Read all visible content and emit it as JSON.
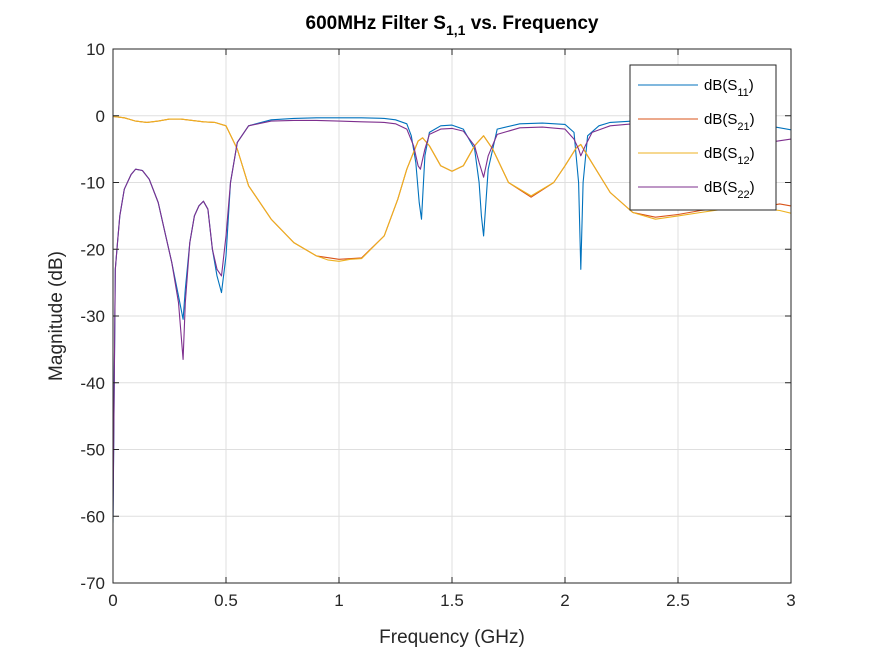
{
  "chart_data": {
    "type": "line",
    "title_main": "600MHz Filter S",
    "title_sub": "1,1",
    "title_tail": " vs. Frequency",
    "xlabel": "Frequency (GHz)",
    "ylabel": "Magnitude (dB)",
    "xlim": [
      0,
      3
    ],
    "ylim": [
      -70,
      10
    ],
    "xticks": [
      0,
      0.5,
      1,
      1.5,
      2,
      2.5,
      3
    ],
    "xtick_labels": [
      "0",
      "0.5",
      "1",
      "1.5",
      "2",
      "2.5",
      "3"
    ],
    "yticks": [
      10,
      0,
      -10,
      -20,
      -30,
      -40,
      -50,
      -60,
      -70
    ],
    "ytick_labels": [
      "10",
      "0",
      "-10",
      "-20",
      "-30",
      "-40",
      "-50",
      "-60",
      "-70"
    ],
    "grid": true,
    "legend_position": "top-right",
    "series": [
      {
        "name_prefix": "dB(S",
        "name_sub": "11",
        "name_suffix": ")",
        "color": "#0072BD",
        "x": [
          0.0,
          0.01,
          0.02,
          0.03,
          0.05,
          0.08,
          0.1,
          0.13,
          0.16,
          0.2,
          0.23,
          0.26,
          0.29,
          0.31,
          0.32,
          0.34,
          0.36,
          0.38,
          0.4,
          0.42,
          0.44,
          0.46,
          0.48,
          0.5,
          0.52,
          0.55,
          0.6,
          0.7,
          0.8,
          0.9,
          1.0,
          1.1,
          1.2,
          1.25,
          1.3,
          1.32,
          1.34,
          1.355,
          1.365,
          1.38,
          1.4,
          1.45,
          1.5,
          1.55,
          1.6,
          1.62,
          1.63,
          1.64,
          1.66,
          1.7,
          1.8,
          1.9,
          2.0,
          2.04,
          2.06,
          2.07,
          2.08,
          2.1,
          2.15,
          2.2,
          2.3,
          2.4,
          2.5,
          2.6,
          2.7,
          2.8,
          2.9,
          3.0
        ],
        "y": [
          -61,
          -23,
          -19,
          -15,
          -11,
          -8.8,
          -8.0,
          -8.2,
          -9.5,
          -13,
          -17.5,
          -22,
          -27,
          -30.5,
          -26,
          -19,
          -15,
          -13.5,
          -12.8,
          -14,
          -20,
          -24,
          -26.5,
          -21,
          -10,
          -4,
          -1.5,
          -0.6,
          -0.4,
          -0.3,
          -0.3,
          -0.3,
          -0.4,
          -0.6,
          -1.2,
          -3,
          -7,
          -13,
          -15.5,
          -6,
          -2.5,
          -1.5,
          -1.4,
          -2,
          -5,
          -10,
          -15,
          -18,
          -8,
          -2,
          -1.2,
          -1.1,
          -1.3,
          -2.5,
          -10,
          -23,
          -10,
          -3,
          -1.5,
          -1.0,
          -0.8,
          -0.6,
          -0.5,
          -0.6,
          -0.8,
          -1.0,
          -1.5,
          -2.1
        ]
      },
      {
        "name_prefix": "dB(S",
        "name_sub": "21",
        "name_suffix": ")",
        "color": "#D95319",
        "x": [
          0.0,
          0.05,
          0.1,
          0.15,
          0.2,
          0.25,
          0.3,
          0.35,
          0.4,
          0.45,
          0.5,
          0.55,
          0.6,
          0.7,
          0.8,
          0.9,
          1.0,
          1.1,
          1.2,
          1.26,
          1.3,
          1.35,
          1.37,
          1.4,
          1.45,
          1.5,
          1.55,
          1.6,
          1.64,
          1.68,
          1.75,
          1.85,
          1.95,
          2.0,
          2.05,
          2.07,
          2.1,
          2.2,
          2.3,
          2.4,
          2.5,
          2.6,
          2.7,
          2.8,
          2.9,
          2.95,
          3.0
        ],
        "y": [
          -0.1,
          -0.3,
          -0.8,
          -1.0,
          -0.8,
          -0.5,
          -0.5,
          -0.7,
          -0.9,
          -1.0,
          -1.5,
          -5,
          -10.5,
          -15.5,
          -19,
          -21,
          -21.5,
          -21.3,
          -18,
          -12.5,
          -8,
          -3.8,
          -3.3,
          -4.5,
          -7.5,
          -8.3,
          -7.5,
          -4.5,
          -3.0,
          -5,
          -10,
          -12.2,
          -10,
          -7.5,
          -4.8,
          -4.3,
          -6,
          -11.5,
          -14.5,
          -15.2,
          -14.8,
          -14.2,
          -13.8,
          -13.5,
          -13.5,
          -13.2,
          -13.5
        ]
      },
      {
        "name_prefix": "dB(S",
        "name_sub": "12",
        "name_suffix": ")",
        "color": "#EDB120",
        "x": [
          0.0,
          0.05,
          0.1,
          0.15,
          0.2,
          0.25,
          0.3,
          0.35,
          0.4,
          0.45,
          0.5,
          0.55,
          0.6,
          0.7,
          0.8,
          0.9,
          0.95,
          1.0,
          1.05,
          1.1,
          1.2,
          1.26,
          1.3,
          1.35,
          1.37,
          1.4,
          1.45,
          1.5,
          1.55,
          1.6,
          1.64,
          1.68,
          1.75,
          1.85,
          1.95,
          2.0,
          2.05,
          2.07,
          2.1,
          2.2,
          2.3,
          2.4,
          2.5,
          2.6,
          2.7,
          2.8,
          2.9,
          2.95,
          3.0
        ],
        "y": [
          -0.1,
          -0.3,
          -0.8,
          -1.0,
          -0.8,
          -0.5,
          -0.5,
          -0.7,
          -0.9,
          -1.0,
          -1.5,
          -5,
          -10.5,
          -15.5,
          -19,
          -21,
          -21.6,
          -21.8,
          -21.5,
          -21.4,
          -18,
          -12.5,
          -8,
          -3.8,
          -3.3,
          -4.5,
          -7.5,
          -8.3,
          -7.5,
          -4.5,
          -3.0,
          -5,
          -10,
          -12.0,
          -10,
          -7.5,
          -4.8,
          -4.3,
          -6,
          -11.5,
          -14.5,
          -15.5,
          -15,
          -14.5,
          -14,
          -14,
          -14,
          -14.2,
          -14.6
        ]
      },
      {
        "name_prefix": "dB(S",
        "name_sub": "22",
        "name_suffix": ")",
        "color": "#7E2F8E",
        "x": [
          0.0,
          0.01,
          0.02,
          0.03,
          0.05,
          0.08,
          0.1,
          0.13,
          0.16,
          0.2,
          0.23,
          0.26,
          0.29,
          0.31,
          0.32,
          0.34,
          0.36,
          0.38,
          0.4,
          0.42,
          0.44,
          0.46,
          0.48,
          0.5,
          0.52,
          0.55,
          0.6,
          0.7,
          0.8,
          0.9,
          1.0,
          1.1,
          1.2,
          1.25,
          1.3,
          1.33,
          1.35,
          1.36,
          1.38,
          1.4,
          1.45,
          1.5,
          1.55,
          1.6,
          1.62,
          1.64,
          1.66,
          1.7,
          1.8,
          1.9,
          2.0,
          2.04,
          2.06,
          2.07,
          2.09,
          2.12,
          2.2,
          2.3,
          2.4,
          2.5,
          2.6,
          2.7,
          2.8,
          2.9,
          3.0
        ],
        "y": [
          -60,
          -23,
          -19,
          -15,
          -11,
          -8.8,
          -8.0,
          -8.2,
          -9.5,
          -13,
          -17.5,
          -22,
          -28,
          -36.5,
          -28,
          -19,
          -15,
          -13.5,
          -12.8,
          -14,
          -20,
          -23,
          -24,
          -18,
          -10,
          -4,
          -1.5,
          -0.8,
          -0.7,
          -0.7,
          -0.8,
          -0.9,
          -1.0,
          -1.2,
          -2,
          -4.5,
          -7.5,
          -8,
          -5,
          -2.8,
          -2.0,
          -1.9,
          -2.3,
          -4.5,
          -7,
          -9.2,
          -6,
          -2.8,
          -1.8,
          -1.7,
          -2.0,
          -3.5,
          -5,
          -6,
          -4.5,
          -2.5,
          -1.5,
          -1.2,
          -1.2,
          -1.5,
          -2.5,
          -3.5,
          -4.5,
          -4,
          -3.5
        ]
      }
    ]
  }
}
